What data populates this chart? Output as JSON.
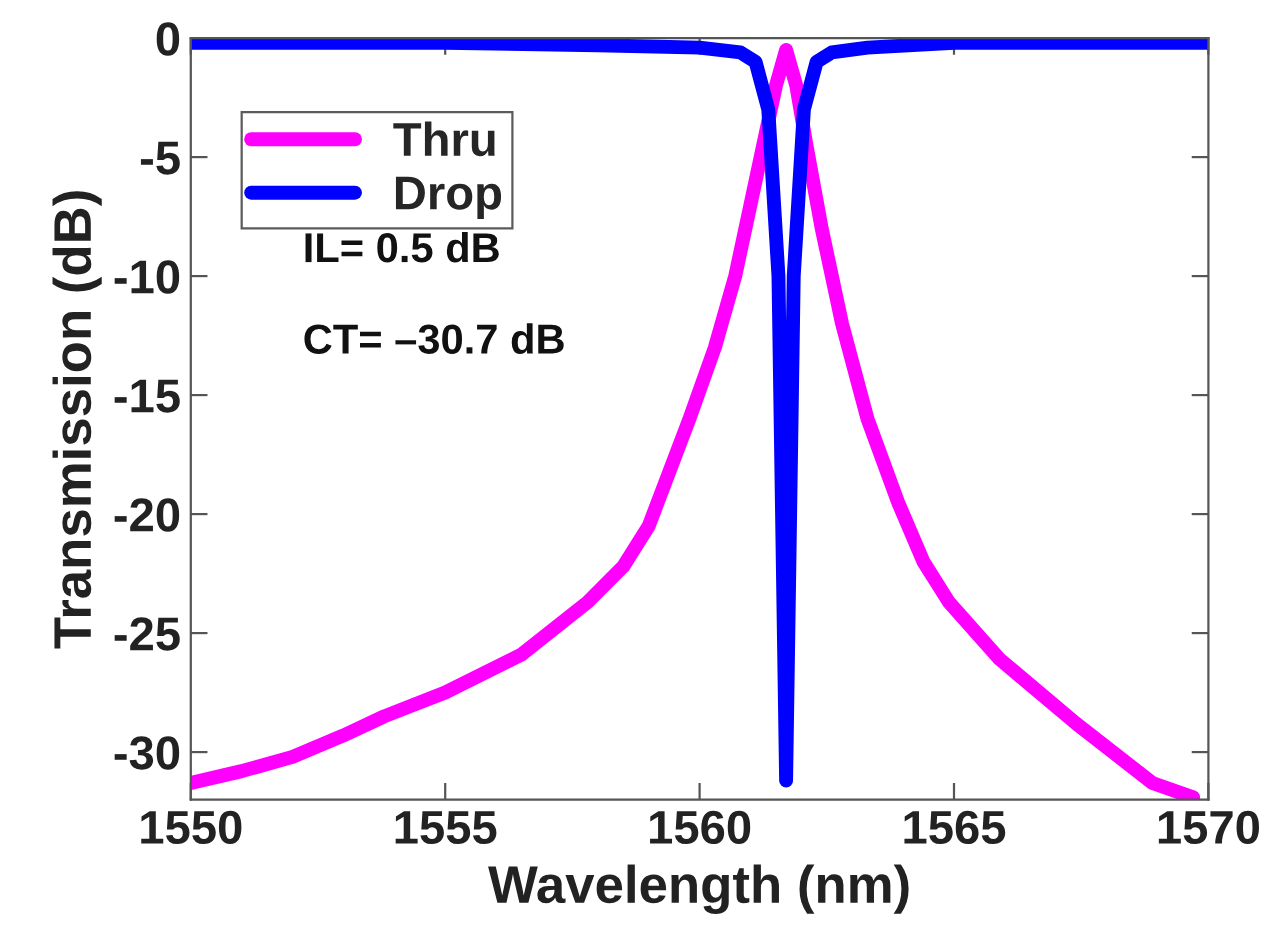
{
  "chart_data": {
    "type": "line",
    "xlabel": "Wavelength (nm)",
    "ylabel": "Transmission (dB)",
    "xlim": [
      1550,
      1570
    ],
    "ylim": [
      -32,
      0
    ],
    "xticks": [
      1550,
      1555,
      1560,
      1565,
      1570
    ],
    "yticks": [
      -30,
      -25,
      -20,
      -15,
      -10,
      -5,
      0
    ],
    "grid": false,
    "legend": "top left",
    "annotations": [
      "IL= 0.5 dB",
      "CT= –30.7 dB"
    ],
    "series": [
      {
        "name": "Thru",
        "color": "#ff00ff",
        "x": [
          1550,
          1551,
          1552,
          1553,
          1553.8,
          1555,
          1556.5,
          1557.8,
          1558.5,
          1559,
          1559.8,
          1560.3,
          1560.7,
          1561,
          1561.3,
          1561.5,
          1561.7,
          1561.9,
          1562.1,
          1562.4,
          1562.8,
          1563.3,
          1563.9,
          1564.4,
          1564.9,
          1565.9,
          1567.4,
          1568.9,
          1569.7
        ],
        "values": [
          -31.3,
          -30.8,
          -30.2,
          -29.3,
          -28.5,
          -27.5,
          -25.9,
          -23.7,
          -22.2,
          -20.5,
          -16,
          -13,
          -10,
          -7,
          -4,
          -2,
          -0.5,
          -2,
          -4.5,
          -8,
          -12,
          -16,
          -19.5,
          -22,
          -23.7,
          -26.1,
          -28.8,
          -31.3,
          -31.9
        ]
      },
      {
        "name": "Drop",
        "color": "#0000ff",
        "x": [
          1550,
          1555,
          1558,
          1560,
          1560.8,
          1561.1,
          1561.35,
          1561.55,
          1561.7,
          1561.85,
          1562.05,
          1562.3,
          1562.6,
          1563.3,
          1565,
          1570
        ],
        "values": [
          -0.2,
          -0.2,
          -0.3,
          -0.4,
          -0.6,
          -1,
          -3,
          -10,
          -31.2,
          -10,
          -3,
          -1,
          -0.6,
          -0.4,
          -0.2,
          -0.2
        ]
      }
    ]
  }
}
